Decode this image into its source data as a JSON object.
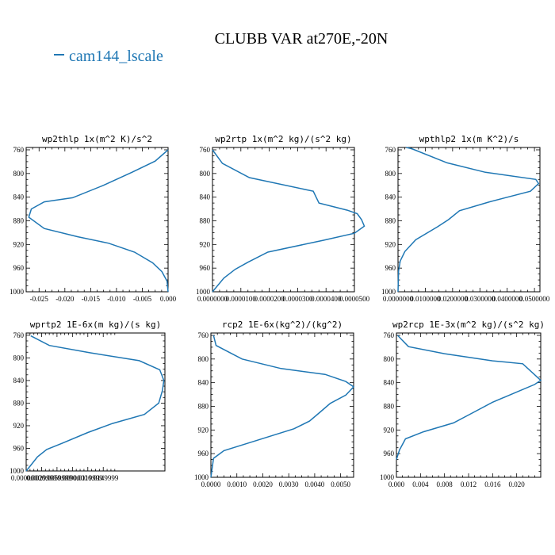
{
  "title": "CLUBB VAR at270E,-20N",
  "legend": [
    "cam144_lscale"
  ],
  "colors": {
    "series": "#1f77b4"
  },
  "chart_data": [
    {
      "type": "line",
      "title": "wp2thlp  1x(m^2 K)/s^2",
      "series": [
        {
          "name": "cam144_lscale",
          "x": [
            0.0,
            -0.0025,
            -0.007,
            -0.0125,
            -0.0185,
            -0.024,
            -0.0265,
            -0.027,
            -0.024,
            -0.0175,
            -0.0115,
            -0.0065,
            -0.003,
            -0.0012,
            -0.0002,
            0.0
          ],
          "y": [
            760,
            779,
            798,
            820,
            841,
            848,
            860,
            874,
            893,
            907,
            918,
            933,
            951,
            966,
            982,
            1000
          ]
        }
      ],
      "xlim": [
        -0.0275,
        0.0
      ],
      "ylim": [
        1000,
        756
      ],
      "xticks": [
        "-0.025",
        "-0.020",
        "-0.015",
        "-0.010",
        "-0.005",
        "0.000"
      ],
      "xtick_values": [
        -0.025,
        -0.02,
        -0.015,
        -0.01,
        -0.005,
        0.0
      ],
      "yticks": [
        "760",
        "800",
        "840",
        "880",
        "920",
        "960",
        "1000"
      ],
      "ytick_values": [
        760,
        800,
        840,
        880,
        920,
        960,
        1000
      ]
    },
    {
      "type": "line",
      "title": "wp2rtp  1x(m^2 kg)/(s^2 kg)",
      "series": [
        {
          "name": "cam144_lscale",
          "x": [
            0.0,
            3.5e-06,
            1.3e-05,
            3.55e-05,
            3.75e-05,
            4.75e-05,
            5.1e-05,
            5.25e-05,
            5.35e-05,
            5e-05,
            3.9e-05,
            1.95e-05,
            1.25e-05,
            8e-06,
            4e-06,
            0.0
          ],
          "y": [
            760,
            783,
            807,
            830,
            850,
            862,
            868,
            878,
            889,
            901,
            913,
            933,
            950,
            962,
            977,
            1000
          ]
        }
      ],
      "xlim": [
        0.0,
        5e-05
      ],
      "ylim": [
        1000,
        756
      ],
      "xticks": [
        "0.0000000",
        "0.0000100",
        "0.0000200",
        "0.0000300",
        "0.0000400",
        "0.0000500"
      ],
      "xtick_values": [
        0.0,
        1e-05,
        2e-05,
        3e-05,
        4e-05,
        5e-05
      ],
      "yticks": [
        "760",
        "800",
        "840",
        "880",
        "920",
        "960",
        "1000"
      ],
      "ytick_values": [
        760,
        800,
        840,
        880,
        920,
        960,
        1000
      ]
    },
    {
      "type": "line",
      "title": "wpthlp2  1x(m K^2)/s",
      "series": [
        {
          "name": "cam144_lscale",
          "x": [
            0.003,
            0.005,
            0.018,
            0.032,
            0.0505,
            0.0515,
            0.0485,
            0.0335,
            0.0225,
            0.0185,
            0.0145,
            0.0065,
            0.0025,
            0.0008,
            0.0002,
            0.0
          ],
          "y": [
            756,
            758,
            782,
            798,
            810,
            817,
            830,
            848,
            863,
            878,
            890,
            912,
            932,
            948,
            965,
            1000
          ]
        }
      ],
      "xlim": [
        0.0,
        0.052
      ],
      "ylim": [
        1000,
        756
      ],
      "xticks": [
        "0.0000000",
        "0.0100000",
        "0.0200000",
        "0.0300000",
        "0.0400000",
        "0.0500000"
      ],
      "xtick_values": [
        0.0,
        0.01,
        0.02,
        0.03,
        0.04,
        0.05
      ],
      "yticks": [
        "760",
        "800",
        "840",
        "880",
        "920",
        "960",
        "1000"
      ],
      "ytick_values": [
        760,
        800,
        840,
        880,
        920,
        960,
        1000
      ]
    },
    {
      "type": "line",
      "title": "wprtp2  1E-6x(m kg)/(s kg)",
      "series": [
        {
          "name": "cam144_lscale",
          "x": [
            0.0009,
            0.0045,
            0.0125,
            0.022,
            0.026,
            0.0268,
            0.0265,
            0.0258,
            0.023,
            0.0168,
            0.012,
            0.007,
            0.004,
            0.0022,
            0.0009,
            0.0
          ],
          "y": [
            761,
            778,
            791,
            805,
            821,
            840,
            858,
            880,
            900,
            916,
            932,
            951,
            962,
            975,
            990,
            1000
          ]
        }
      ],
      "xlim": [
        0.0,
        0.027
      ],
      "ylim": [
        1000,
        756
      ],
      "xticks": [
        "0.0000000",
        "0.0029999",
        "0.0059999",
        "0.0090000",
        "0.0119999",
        "0.0149999"
      ],
      "xtick_values": [
        0.0,
        0.0029999,
        0.0059999,
        0.009,
        0.0119999,
        0.0149999
      ],
      "yticks": [
        "760",
        "800",
        "840",
        "880",
        "920",
        "960",
        "1000"
      ],
      "ytick_values": [
        760,
        800,
        840,
        880,
        920,
        960,
        1000
      ]
    },
    {
      "type": "line",
      "title": "rcp2  1E-6x(kg^2)/(kg^2)",
      "series": [
        {
          "name": "cam144_lscale",
          "x": [
            0.0001,
            0.0002,
            0.0012,
            0.0027,
            0.0044,
            0.0052,
            0.0055,
            0.0052,
            0.0046,
            0.0042,
            0.0038,
            0.0032,
            0.0016,
            0.0005,
            0.0001,
            0.0
          ],
          "y": [
            760,
            777,
            800,
            816,
            826,
            838,
            847,
            861,
            875,
            890,
            905,
            918,
            940,
            955,
            968,
            1000
          ]
        }
      ],
      "xlim": [
        0.0,
        0.0055
      ],
      "ylim": [
        1000,
        756
      ],
      "xticks": [
        "0.0000",
        "0.0010",
        "0.0020",
        "0.0030",
        "0.0040",
        "0.0050"
      ],
      "xtick_values": [
        0.0,
        0.001,
        0.002,
        0.003,
        0.004,
        0.005
      ],
      "yticks": [
        "760",
        "800",
        "840",
        "880",
        "920",
        "960",
        "1000"
      ],
      "ytick_values": [
        760,
        800,
        840,
        880,
        920,
        960,
        1000
      ]
    },
    {
      "type": "line",
      "title": "wp2rcp  1E-3x(m^2 kg)/(s^2 kg)",
      "series": [
        {
          "name": "cam144_lscale",
          "x": [
            0.0002,
            0.002,
            0.008,
            0.016,
            0.021,
            0.024,
            0.023,
            0.0195,
            0.016,
            0.0125,
            0.0095,
            0.0045,
            0.0015,
            0.0005,
            0.0
          ],
          "y": [
            760,
            779,
            791,
            803,
            808,
            836,
            843,
            858,
            873,
            892,
            908,
            923,
            935,
            954,
            970
          ]
        }
      ],
      "xlim": [
        0.0,
        0.024
      ],
      "ylim": [
        1000,
        756
      ],
      "xticks": [
        "0.000",
        "0.004",
        "0.008",
        "0.012",
        "0.016",
        "0.020"
      ],
      "xtick_values": [
        0.0,
        0.004,
        0.008,
        0.012,
        0.016,
        0.02
      ],
      "yticks": [
        "760",
        "800",
        "840",
        "880",
        "920",
        "960",
        "1000"
      ],
      "ytick_values": [
        760,
        800,
        840,
        880,
        920,
        960,
        1000
      ]
    }
  ]
}
